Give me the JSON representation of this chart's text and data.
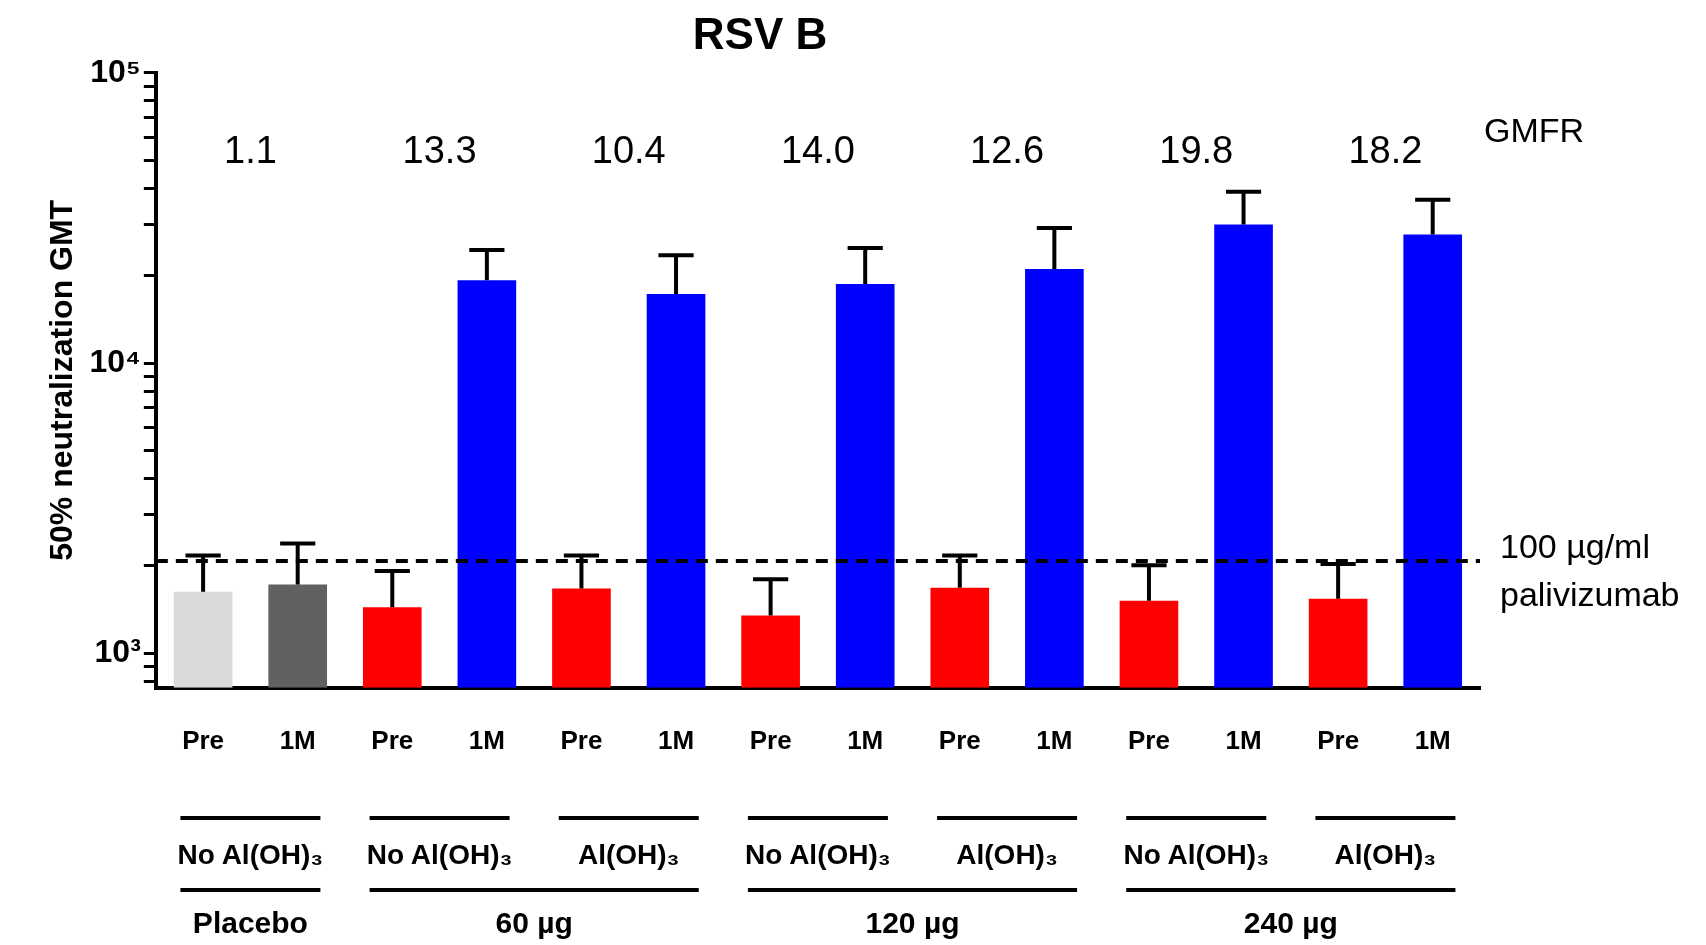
{
  "chart_data": {
    "type": "bar",
    "title": "RSV B",
    "ylabel": "50% neutralization GMT",
    "categories": [
      "Pre",
      "1M",
      "Pre",
      "1M",
      "Pre",
      "1M",
      "Pre",
      "1M",
      "Pre",
      "1M",
      "Pre",
      "1M",
      "Pre",
      "1M"
    ],
    "values": [
      1630,
      1725,
      1440,
      19300,
      1670,
      17300,
      1350,
      18700,
      1680,
      21100,
      1515,
      30000,
      1540,
      27700
    ],
    "colors": [
      "#d9d9d9",
      "#616161",
      "#ff0000",
      "#0000ff",
      "#ff0000",
      "#0000ff",
      "#ff0000",
      "#0000ff",
      "#ff0000",
      "#0000ff",
      "#ff0000",
      "#0000ff",
      "#ff0000",
      "#0000ff"
    ],
    "errors": [
      [
        1630,
        2170
      ],
      [
        1725,
        2390
      ],
      [
        1440,
        1920
      ],
      [
        19300,
        24500
      ],
      [
        1670,
        2170
      ],
      [
        17300,
        23500
      ],
      [
        1350,
        1800
      ],
      [
        18700,
        24900
      ],
      [
        1680,
        2170
      ],
      [
        21100,
        29200
      ],
      [
        1515,
        2010
      ],
      [
        30000,
        38900
      ],
      [
        1540,
        2030
      ],
      [
        27700,
        36500
      ]
    ],
    "log": "y",
    "legend": false,
    "ylim": [
      760,
      100000
    ],
    "yticks": [
      {
        "value": 800,
        "label": null
      },
      {
        "value": 900,
        "label": null
      },
      {
        "value": 1000,
        "label": "10³"
      },
      {
        "value": 2000,
        "label": null
      },
      {
        "value": 3000,
        "label": null
      },
      {
        "value": 4000,
        "label": null
      },
      {
        "value": 5000,
        "label": null
      },
      {
        "value": 6000,
        "label": null
      },
      {
        "value": 7000,
        "label": null
      },
      {
        "value": 8000,
        "label": null
      },
      {
        "value": 9000,
        "label": null
      },
      {
        "value": 10000,
        "label": "10⁴"
      },
      {
        "value": 20000,
        "label": null
      },
      {
        "value": 30000,
        "label": null
      },
      {
        "value": 40000,
        "label": null
      },
      {
        "value": 50000,
        "label": null
      },
      {
        "value": 60000,
        "label": null
      },
      {
        "value": 70000,
        "label": null
      },
      {
        "value": 80000,
        "label": null
      },
      {
        "value": 90000,
        "label": null
      },
      {
        "value": 100000,
        "label": "10⁵"
      }
    ],
    "ref_lines": [
      {
        "axis": "y",
        "value": 2080,
        "label": "100 µg/ml palivizumab",
        "color": "#000000",
        "line_style": "dashed"
      }
    ],
    "annotations": [
      "1.1",
      "13.3",
      "10.4",
      "14.0",
      "12.6",
      "19.8",
      "18.2",
      "GMFR",
      "No Al(OH)₃",
      "No Al(OH)₃",
      "Al(OH)₃",
      "No Al(OH)₃",
      "Al(OH)₃",
      "No Al(OH)₃",
      "Al(OH)₃",
      "Placebo",
      "60 µg",
      "120 µg",
      "240 µg"
    ]
  }
}
